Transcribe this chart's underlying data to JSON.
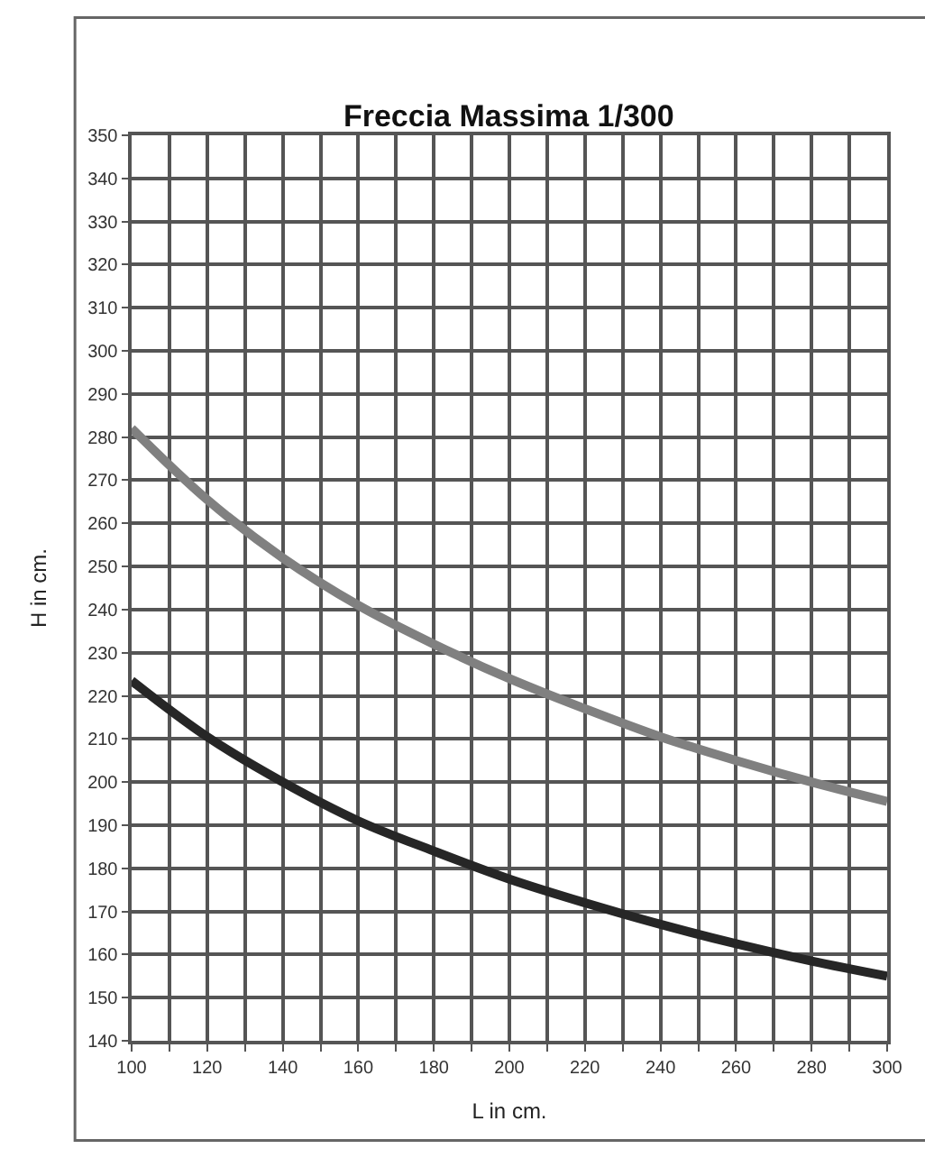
{
  "chart_data": {
    "type": "line",
    "title": "Freccia Massima 1/300",
    "xlabel": "L in cm.",
    "ylabel": "H in cm.",
    "x": [
      100,
      120,
      140,
      160,
      180,
      200,
      220,
      240,
      260,
      280,
      300
    ],
    "series": [
      {
        "color": "#808080",
        "values": [
          282,
          265.5,
          252,
          241,
          232,
          224,
          217,
          210.5,
          205,
          200,
          195.5
        ]
      },
      {
        "color": "#262626",
        "values": [
          223.5,
          210.5,
          200,
          191,
          184,
          177.5,
          172,
          167,
          162.5,
          158.5,
          155
        ]
      }
    ],
    "xlim": [
      100,
      300
    ],
    "ylim": [
      140,
      350
    ],
    "xticks": [
      100,
      {
        "value": 110,
        "label": null
      },
      120,
      {
        "value": 130,
        "label": null
      },
      140,
      {
        "value": 150,
        "label": null
      },
      160,
      {
        "value": 170,
        "label": null
      },
      180,
      {
        "value": 190,
        "label": null
      },
      200,
      {
        "value": 210,
        "label": null
      },
      220,
      {
        "value": 230,
        "label": null
      },
      240,
      {
        "value": 250,
        "label": null
      },
      260,
      {
        "value": 270,
        "label": null
      },
      280,
      {
        "value": 290,
        "label": null
      },
      300
    ],
    "yticks": [
      140,
      150,
      160,
      170,
      180,
      190,
      200,
      210,
      220,
      230,
      240,
      250,
      260,
      270,
      280,
      290,
      300,
      310,
      320,
      330,
      340,
      350
    ],
    "grid": true,
    "marker": "none",
    "line_style": "solid"
  }
}
